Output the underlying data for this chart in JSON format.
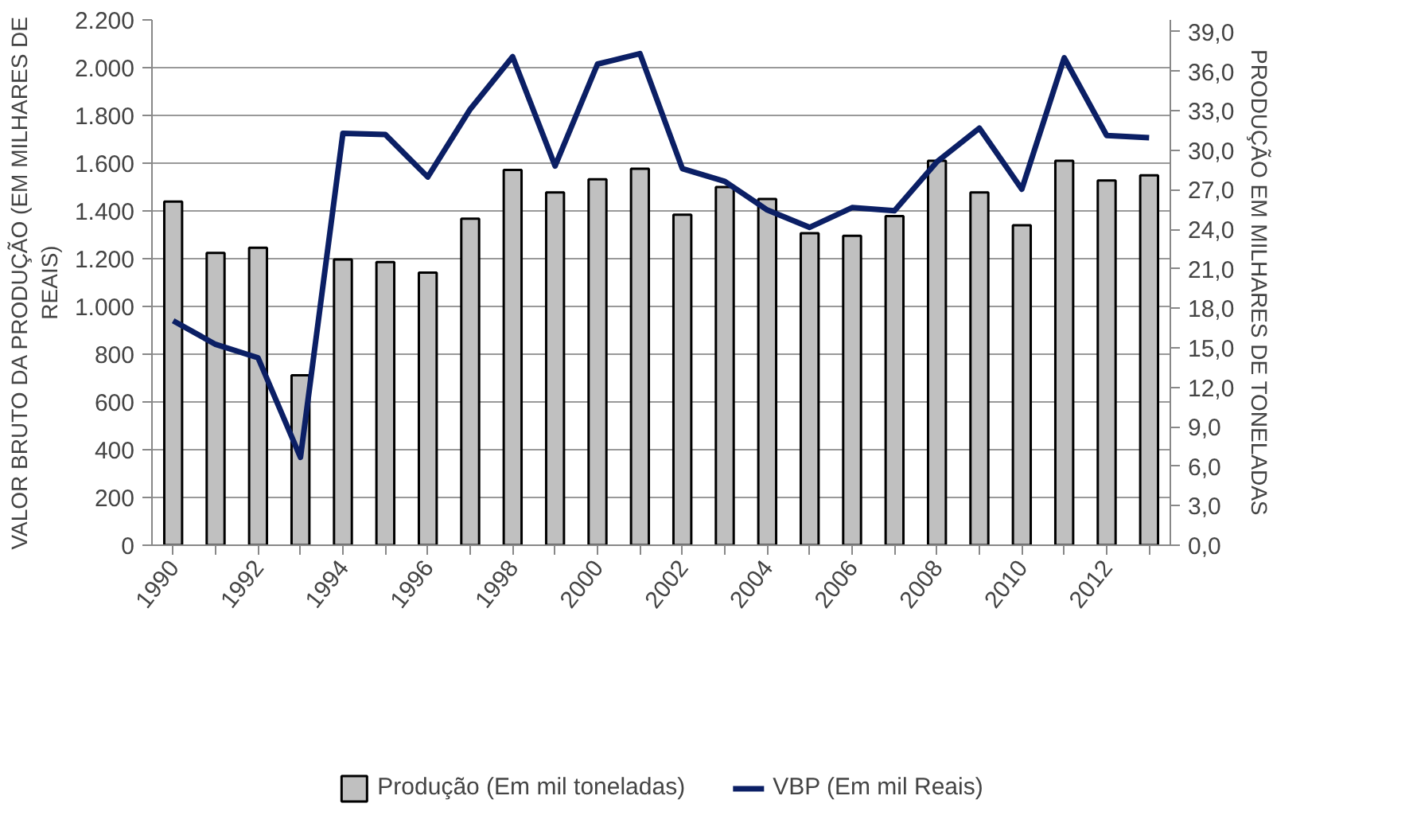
{
  "chart_data": {
    "type": "bar",
    "ylabel": "VALOR BRUTO DA PRODUÇÃO (EM MILHARES DE\nREAIS)",
    "y2label": "PRODUÇÃO EM MILHARES DE TONELADAS",
    "x": [
      1990,
      1991,
      1992,
      1993,
      1994,
      1995,
      1996,
      1997,
      1998,
      1999,
      2000,
      2001,
      2002,
      2003,
      2004,
      2005,
      2006,
      2007,
      2008,
      2009,
      2010,
      2011,
      2012,
      2013
    ],
    "xlim": [
      1989.5,
      2013.5
    ],
    "xticks": [
      1990,
      {
        "value": 1991,
        "label": null
      },
      1992,
      {
        "value": 1993,
        "label": null
      },
      1994,
      {
        "value": 1995,
        "label": null
      },
      1996,
      {
        "value": 1997,
        "label": null
      },
      1998,
      {
        "value": 1999,
        "label": null
      },
      2000,
      {
        "value": 2001,
        "label": null
      },
      2002,
      {
        "value": 2003,
        "label": null
      },
      2004,
      {
        "value": 2005,
        "label": null
      },
      2006,
      {
        "value": 2007,
        "label": null
      },
      2008,
      {
        "value": 2009,
        "label": null
      },
      2010,
      {
        "value": 2011,
        "label": null
      },
      2012,
      {
        "value": 2013,
        "label": null
      }
    ],
    "ylim": [
      0,
      2200
    ],
    "yticks": [
      0,
      200,
      400,
      600,
      800,
      {
        "value": 1000,
        "label": "1.000"
      },
      {
        "value": 1200,
        "label": "1.200"
      },
      {
        "value": 1400,
        "label": "1.400"
      },
      {
        "value": 1600,
        "label": "1.600"
      },
      {
        "value": 1800,
        "label": "1.800"
      },
      {
        "value": 2000,
        "label": "2.000"
      },
      {
        "value": 2200,
        "label": "2.200"
      }
    ],
    "y2lim": [
      0,
      39.9
    ],
    "y2ticks": [
      {
        "value": 0,
        "label": "0,0"
      },
      {
        "value": 3,
        "label": "3,0"
      },
      {
        "value": 6,
        "label": "6,0"
      },
      {
        "value": 9,
        "label": "9,0"
      },
      {
        "value": 12,
        "label": "12,0"
      },
      {
        "value": 15,
        "label": "15,0"
      },
      {
        "value": 18,
        "label": "18,0"
      },
      {
        "value": 21,
        "label": "21,0"
      },
      {
        "value": 24,
        "label": "24,0"
      },
      {
        "value": 27,
        "label": "27,0"
      },
      {
        "value": 30,
        "label": "30,0"
      },
      {
        "value": 33,
        "label": "33,0"
      },
      {
        "value": 36,
        "label": "36,0"
      },
      {
        "value": 39,
        "label": "39,0"
      }
    ],
    "grid": "y",
    "legend": "bottom",
    "series": [
      {
        "name": "Produção (Em mil toneladas)",
        "axis": "y2",
        "color": "#c0c0c0",
        "values": [
          26.1,
          22.2,
          22.6,
          12.9,
          21.7,
          21.5,
          20.7,
          24.8,
          28.5,
          26.8,
          27.8,
          28.6,
          25.1,
          27.2,
          26.3,
          23.7,
          23.5,
          25.0,
          29.2,
          26.8,
          24.3,
          29.2,
          27.7,
          28.1
        ]
      },
      {
        "name": "VBP (Em mil Reais)",
        "type": "line",
        "color": "#0b1f65",
        "line_style": "solid",
        "values": [
          940,
          841,
          785,
          368,
          1725,
          1720,
          1542,
          1826,
          2046,
          1588,
          2015,
          2059,
          1577,
          1524,
          1404,
          1331,
          1414,
          1401,
          1606,
          1747,
          1491,
          2041,
          1716,
          1707
        ]
      }
    ]
  }
}
